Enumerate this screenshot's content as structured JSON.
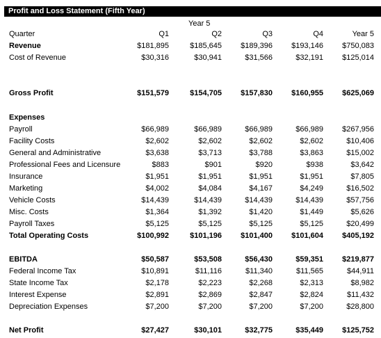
{
  "title": "Profit and Loss Statement (Fifth Year)",
  "year_header": "Year 5",
  "header": {
    "label": "Quarter",
    "cols": [
      "Q1",
      "Q2",
      "Q3",
      "Q4",
      "Year 5"
    ]
  },
  "rows": {
    "revenue": {
      "label": "Revenue",
      "vals": [
        "$181,895",
        "$185,645",
        "$189,396",
        "$193,146",
        "$750,083"
      ]
    },
    "cost_of_revenue": {
      "label": "Cost of Revenue",
      "vals": [
        "$30,316",
        "$30,941",
        "$31,566",
        "$32,191",
        "$125,014"
      ]
    },
    "gross_profit": {
      "label": "Gross Profit",
      "vals": [
        "$151,579",
        "$154,705",
        "$157,830",
        "$160,955",
        "$625,069"
      ]
    },
    "expenses": {
      "label": "Expenses"
    },
    "payroll": {
      "label": "Payroll",
      "vals": [
        "$66,989",
        "$66,989",
        "$66,989",
        "$66,989",
        "$267,956"
      ]
    },
    "facility_costs": {
      "label": "Facility Costs",
      "vals": [
        "$2,602",
        "$2,602",
        "$2,602",
        "$2,602",
        "$10,406"
      ]
    },
    "general_admin": {
      "label": "General and Administrative",
      "vals": [
        "$3,638",
        "$3,713",
        "$3,788",
        "$3,863",
        "$15,002"
      ]
    },
    "professional_fees": {
      "label": "Professional Fees and Licensure",
      "vals": [
        "$883",
        "$901",
        "$920",
        "$938",
        "$3,642"
      ]
    },
    "insurance": {
      "label": "Insurance",
      "vals": [
        "$1,951",
        "$1,951",
        "$1,951",
        "$1,951",
        "$7,805"
      ]
    },
    "marketing": {
      "label": "Marketing",
      "vals": [
        "$4,002",
        "$4,084",
        "$4,167",
        "$4,249",
        "$16,502"
      ]
    },
    "vehicle_costs": {
      "label": "Vehicle Costs",
      "vals": [
        "$14,439",
        "$14,439",
        "$14,439",
        "$14,439",
        "$57,756"
      ]
    },
    "misc_costs": {
      "label": "Misc. Costs",
      "vals": [
        "$1,364",
        "$1,392",
        "$1,420",
        "$1,449",
        "$5,626"
      ]
    },
    "payroll_taxes": {
      "label": "Payroll Taxes",
      "vals": [
        "$5,125",
        "$5,125",
        "$5,125",
        "$5,125",
        "$20,499"
      ]
    },
    "total_operating_costs": {
      "label": "Total Operating Costs",
      "vals": [
        "$100,992",
        "$101,196",
        "$101,400",
        "$101,604",
        "$405,192"
      ]
    },
    "ebitda": {
      "label": "EBITDA",
      "vals": [
        "$50,587",
        "$53,508",
        "$56,430",
        "$59,351",
        "$219,877"
      ]
    },
    "federal_income_tax": {
      "label": "Federal Income Tax",
      "vals": [
        "$10,891",
        "$11,116",
        "$11,340",
        "$11,565",
        "$44,911"
      ]
    },
    "state_income_tax": {
      "label": "State Income Tax",
      "vals": [
        "$2,178",
        "$2,223",
        "$2,268",
        "$2,313",
        "$8,982"
      ]
    },
    "interest_expense": {
      "label": "Interest Expense",
      "vals": [
        "$2,891",
        "$2,869",
        "$2,847",
        "$2,824",
        "$11,432"
      ]
    },
    "depreciation_expenses": {
      "label": "Depreciation Expenses",
      "vals": [
        "$7,200",
        "$7,200",
        "$7,200",
        "$7,200",
        "$28,800"
      ]
    },
    "net_profit": {
      "label": "Net Profit",
      "vals": [
        "$27,427",
        "$30,101",
        "$32,775",
        "$35,449",
        "$125,752"
      ]
    }
  }
}
